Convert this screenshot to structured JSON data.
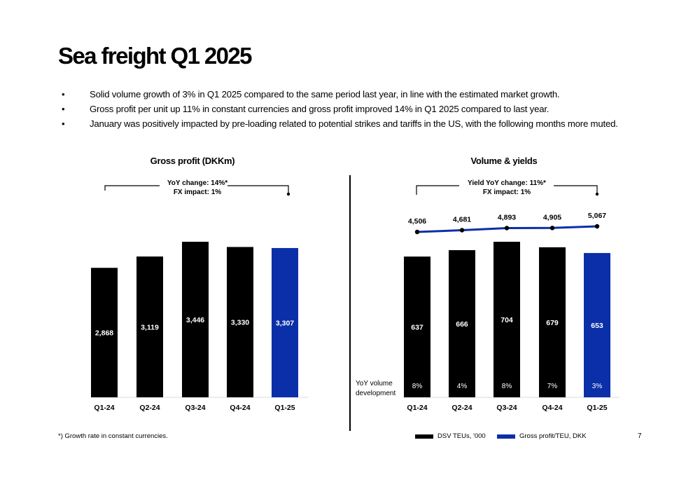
{
  "page": {
    "title": "Sea freight Q1 2025",
    "bullets": [
      "Solid volume growth of 3% in Q1 2025 compared to the same period last year, in line with the estimated market growth.",
      "Gross profit per unit up 11% in constant currencies and gross profit improved 14% in Q1 2025 compared to last year.",
      "January was positively impacted by pre-loading related to potential strikes and tariffs in the US, with the following months more muted."
    ],
    "footnote": "*) Growth rate in constant currencies.",
    "page_number": "7"
  },
  "legend": {
    "teu_label": "DSV TEUs, '000",
    "gp_label": "Gross profit/TEU, DKK"
  },
  "colors": {
    "bar_default": "#000000",
    "bar_highlight": "#0a2fa8",
    "line": "#0a2fa8",
    "text_light": "#ffffff"
  },
  "chart_data": [
    {
      "type": "bar",
      "title": "Gross profit (DKKm)",
      "bracket_lines": [
        "YoY change: 14%*",
        "FX impact: 1%"
      ],
      "categories": [
        "Q1-24",
        "Q2-24",
        "Q3-24",
        "Q4-24",
        "Q1-25"
      ],
      "values": [
        2868,
        3119,
        3446,
        3330,
        3307
      ],
      "value_labels": [
        "2,868",
        "3,119",
        "3,446",
        "3,330",
        "3,307"
      ],
      "highlight_index": 4,
      "ylim": [
        0,
        3446
      ],
      "grid": false
    },
    {
      "type": "bar+line",
      "title": "Volume & yields",
      "bracket_lines": [
        "Yield YoY change: 11%*",
        "FX impact: 1%"
      ],
      "categories": [
        "Q1-24",
        "Q2-24",
        "Q3-24",
        "Q4-24",
        "Q1-25"
      ],
      "bars": {
        "name": "DSV TEUs, '000",
        "values": [
          637,
          666,
          704,
          679,
          653
        ],
        "value_labels": [
          "637",
          "666",
          "704",
          "679",
          "653"
        ],
        "yoy_labels": [
          "8%",
          "4%",
          "8%",
          "7%",
          "3%"
        ],
        "ylim": [
          0,
          704
        ]
      },
      "line": {
        "name": "Gross profit/TEU, DKK",
        "values": [
          4506,
          4681,
          4893,
          4905,
          5067
        ],
        "value_labels": [
          "4,506",
          "4,681",
          "4,893",
          "4,905",
          "5,067"
        ]
      },
      "yoy_row_label": [
        "YoY volume",
        "development"
      ],
      "highlight_index": 4,
      "grid": false
    }
  ]
}
